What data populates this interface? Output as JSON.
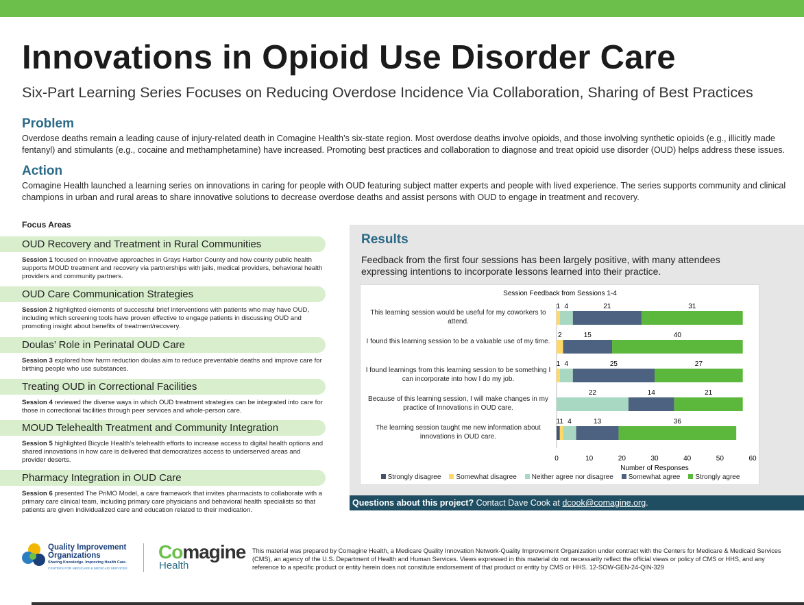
{
  "header": {
    "title": "Innovations in Opioid Use Disorder Care",
    "subtitle": "Six-Part Learning Series Focuses on Reducing Overdose Incidence Via Collaboration, Sharing of Best Practices"
  },
  "problem": {
    "heading": "Problem",
    "text": "Overdose deaths remain a leading cause of injury-related death in Comagine Health’s six-state region. Most overdose deaths involve opioids, and those involving synthetic opioids (e.g., illicitly made fentanyl) and stimulants (e.g., cocaine and methamphetamine) have increased. Promoting best practices and collaboration to diagnose and treat opioid use disorder (OUD) helps address these issues."
  },
  "action": {
    "heading": "Action",
    "text": "Comagine Health launched a learning series on innovations in caring for people with OUD featuring subject matter experts and people with lived experience. The series supports community and clinical champions in urban and rural areas to share innovative solutions to decrease overdose deaths and assist persons with OUD to engage in treatment and recovery."
  },
  "focus_areas": {
    "heading": "Focus Areas",
    "items": [
      {
        "title": "OUD Recovery and Treatment in Rural Communities",
        "session": "Session 1",
        "text": "focused on innovative approaches in Grays Harbor County and how county public health supports MOUD treatment and recovery via partnerships with jails, medical providers, behavioral health providers and community partners."
      },
      {
        "title": "OUD Care Communication Strategies",
        "session": "Session 2",
        "text": "highlighted elements of successful brief interventions with patients who may have OUD, including which screening tools have proven effective to engage patients in discussing OUD and promoting insight about benefits of treatment/recovery."
      },
      {
        "title": "Doulas’ Role in Perinatal OUD Care",
        "session": "Session 3",
        "text": "explored how harm reduction doulas aim to reduce preventable deaths and improve care for birthing people who use substances."
      },
      {
        "title": "Treating OUD in Correctional Facilities",
        "session": "Session 4",
        "text": "reviewed the diverse ways in which OUD treatment strategies can be integrated into care for those in correctional facilities through peer services and whole-person care."
      },
      {
        "title": "MOUD Telehealth Treatment and Community Integration",
        "session": "Session 5",
        "text": "highlighted Bicycle Health’s telehealth efforts to increase access to digital health options and shared innovations in how care is delivered that democratizes access to underserved areas and provider deserts."
      },
      {
        "title": "Pharmacy Integration in OUD Care",
        "session": "Session 6",
        "text": "presented The PriMO Model, a care framework that invites pharmacists to collaborate with a primary care clinical team, including primary care physicians and behavioral health specialists so that patients are given individualized care and education related to their medication."
      }
    ]
  },
  "results": {
    "heading": "Results",
    "text": "Feedback from the first four sessions has been largely positive, with many attendees expressing intentions to incorporate lessons learned into their practice."
  },
  "chart_data": {
    "type": "stacked_bar_horizontal",
    "title": "Session Feedback from Sessions 1-4",
    "x_label": "Number of Responses",
    "categories": [
      "This learning session would be useful for my coworkers to attend.",
      "I found this learning session to be a valuable use of my time.",
      "I found learnings from this learning session to be something I can incorporate into how I do my job.",
      "Because of this learning session, I will make changes in my practice of Innovations in OUD care.",
      "The learning session taught me new information about innovations in OUD care."
    ],
    "series": [
      {
        "name": "Strongly disagree",
        "color": "#44546a",
        "values": [
          null,
          null,
          null,
          null,
          1
        ]
      },
      {
        "name": "Somewhat disagree",
        "color": "#ffd966",
        "values": [
          1,
          2,
          1,
          null,
          1
        ]
      },
      {
        "name": "Neither agree nor disagree",
        "color": "#a8d8c2",
        "values": [
          4,
          null,
          4,
          22,
          4
        ]
      },
      {
        "name": "Somewhat agree",
        "color": "#4d6180",
        "values": [
          21,
          15,
          25,
          14,
          13
        ]
      },
      {
        "name": "Strongly agree",
        "color": "#5cb83d",
        "values": [
          31,
          40,
          27,
          21,
          36
        ]
      }
    ],
    "xlim": [
      0,
      60
    ],
    "xticks": [
      0,
      10,
      20,
      30,
      40,
      50,
      60
    ],
    "grid": false,
    "legend": "bottom"
  },
  "contact": {
    "question": "Questions about this project?",
    "text": "Contact Dave Cook at",
    "email": "dcook@comagine.org",
    "end": "."
  },
  "footer": {
    "qio_name": "Quality Improvement Organizations",
    "qio_tagline": "Sharing Knowledge. Improving Health Care.",
    "qio_cms": "CENTERS FOR MEDICARE & MEDICAID SERVICES",
    "comagine_co": "Co",
    "comagine_rest": "magine",
    "comagine_health": "Health",
    "disclaimer": "This material was prepared by Comagine Health, a Medicare Quality Innovation Network-Quality Improvement Organization under contract with the Centers for Medicare & Medicaid Services (CMS), an agency of the U.S. Department of Health and Human Services. Views expressed in this material do not necessarily reflect the official views or policy of CMS or HHS, and any reference to a specific product or entity herein does not constitute endorsement of that product or entity by CMS or HHS. 12-SOW-GEN-24-QIN-329"
  }
}
